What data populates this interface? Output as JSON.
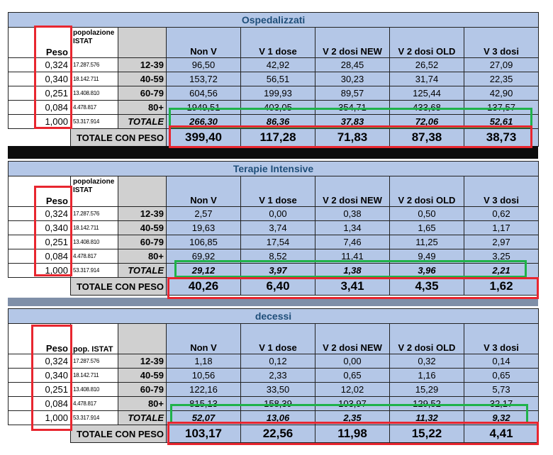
{
  "labels": {
    "peso": "Peso",
    "popolazione_istat_1": "popolazione",
    "popolazione_istat_2": "ISTAT",
    "pop_istat_short": "pop. ISTAT",
    "totale": "TOTALE",
    "totale_con_peso": "TOTALE CON PESO"
  },
  "columns": [
    "Non V",
    "V 1 dose",
    "V 2 dosi NEW",
    "V 2 dosi OLD",
    "V 3 dosi"
  ],
  "weights": [
    "0,324",
    "0,340",
    "0,251",
    "0,084",
    "1,000"
  ],
  "populations": [
    "17.287.576",
    "18.142.711",
    "13.408.810",
    "4.478.817",
    "53.317.914"
  ],
  "age_groups": [
    "12-39",
    "40-59",
    "60-79",
    "80+"
  ],
  "sections": [
    {
      "title": "Ospedalizzati",
      "rows": [
        [
          "96,50",
          "42,92",
          "28,45",
          "26,52",
          "27,09"
        ],
        [
          "153,72",
          "56,51",
          "30,23",
          "31,74",
          "22,35"
        ],
        [
          "604,56",
          "199,93",
          "89,57",
          "125,44",
          "42,90"
        ],
        [
          "1949,51",
          "403,05",
          "354,71",
          "433,68",
          "137,57"
        ]
      ],
      "totale": [
        "266,30",
        "86,36",
        "37,83",
        "72,06",
        "52,61"
      ],
      "totale_con_peso": [
        "399,40",
        "117,28",
        "71,83",
        "87,38",
        "38,73"
      ]
    },
    {
      "title": "Terapie Intensive",
      "rows": [
        [
          "2,57",
          "0,00",
          "0,38",
          "0,50",
          "0,62"
        ],
        [
          "19,63",
          "3,74",
          "1,34",
          "1,65",
          "1,17"
        ],
        [
          "106,85",
          "17,54",
          "7,46",
          "11,25",
          "2,97"
        ],
        [
          "69,92",
          "8,52",
          "11,41",
          "9,49",
          "3,25"
        ]
      ],
      "totale": [
        "29,12",
        "3,97",
        "1,38",
        "3,96",
        "2,21"
      ],
      "totale_con_peso": [
        "40,26",
        "6,40",
        "3,41",
        "4,35",
        "1,62"
      ]
    },
    {
      "title": "decessi",
      "rows": [
        [
          "1,18",
          "0,12",
          "0,00",
          "0,32",
          "0,14"
        ],
        [
          "10,56",
          "2,33",
          "0,65",
          "1,16",
          "0,65"
        ],
        [
          "122,16",
          "33,50",
          "12,02",
          "15,29",
          "5,73"
        ],
        [
          "815,13",
          "158,39",
          "103,97",
          "129,52",
          "32,17"
        ]
      ],
      "totale": [
        "52,07",
        "13,06",
        "2,35",
        "11,32",
        "9,32"
      ],
      "totale_con_peso": [
        "103,17",
        "22,56",
        "11,98",
        "15,22",
        "4,41"
      ]
    }
  ],
  "colors": {
    "header_blue": "#b4c7e7",
    "title_text": "#1f4e79",
    "gray": "#d0d0d0",
    "highlight_red": "#e8262f",
    "highlight_green": "#1fb24a"
  }
}
